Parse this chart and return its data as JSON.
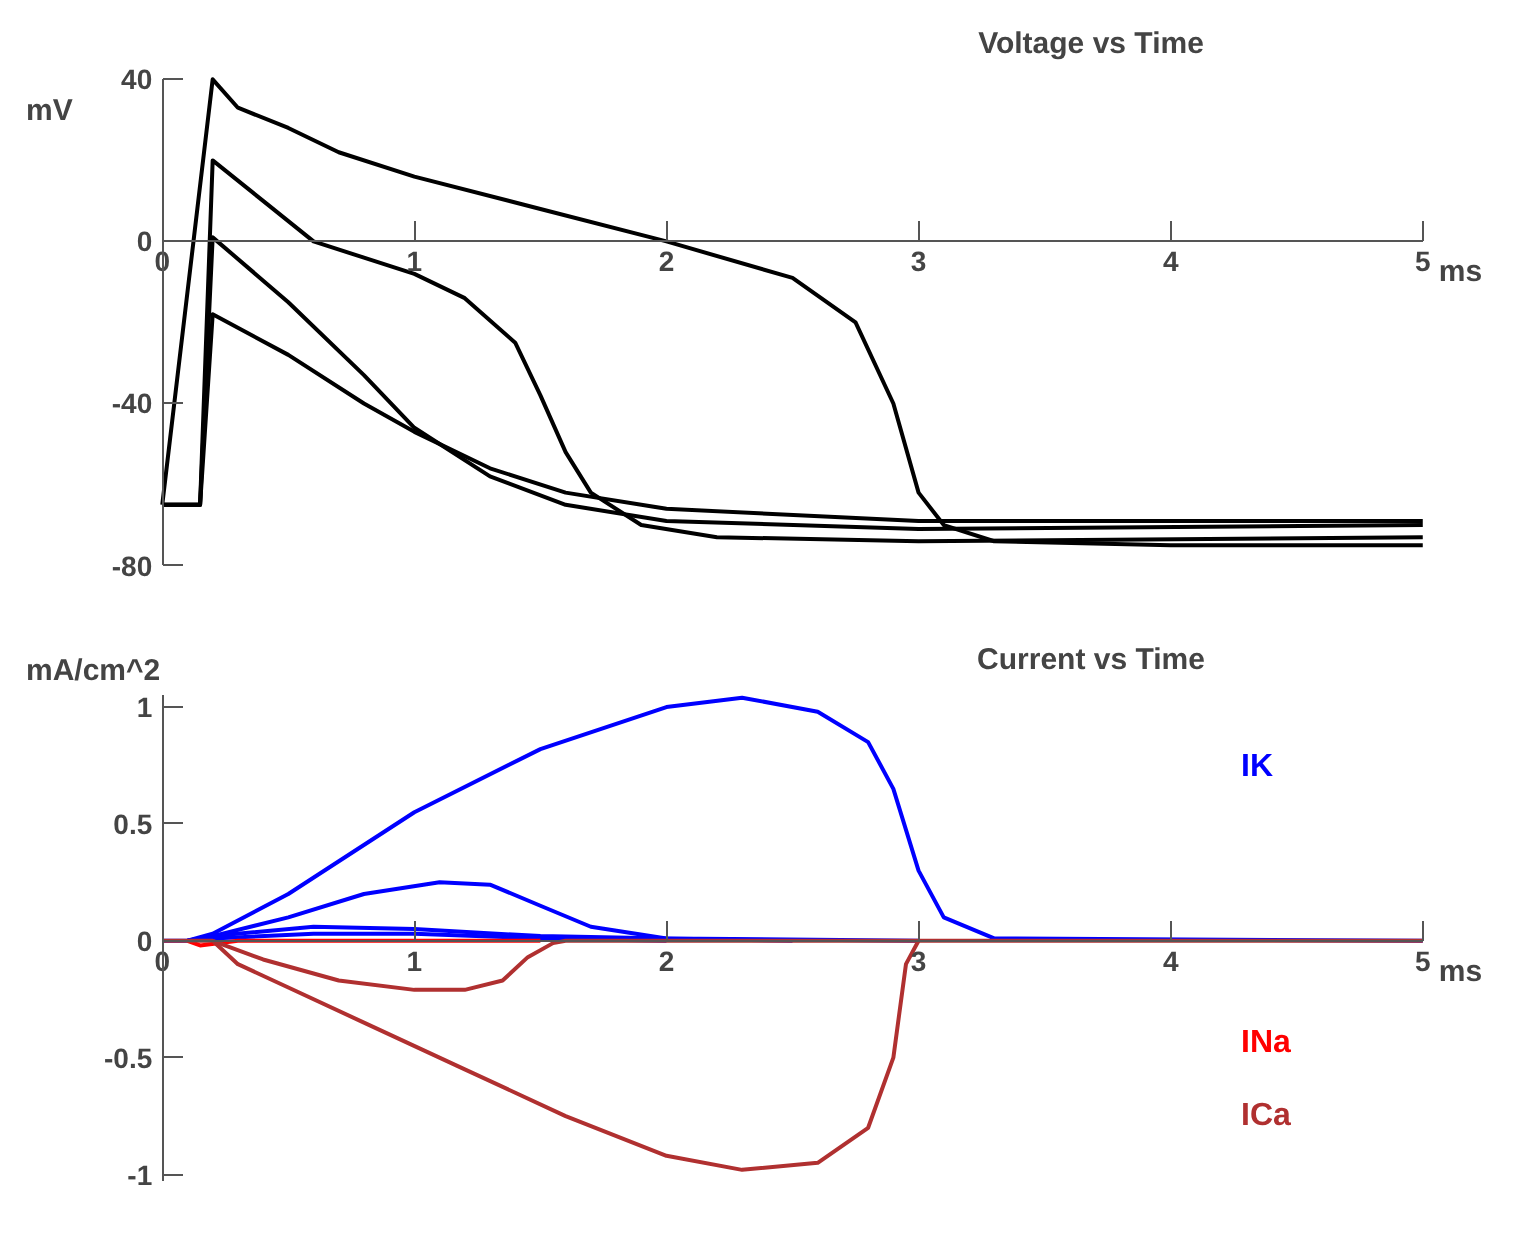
{
  "chart_data": [
    {
      "type": "line",
      "title": "Voltage vs Time",
      "xlabel": "ms",
      "ylabel": "mV",
      "xlim": [
        0,
        5
      ],
      "ylim": [
        -80,
        40
      ],
      "xticks": [
        0,
        1,
        2,
        3,
        4,
        5
      ],
      "yticks": [
        -80,
        -40,
        0,
        40
      ],
      "grid": false,
      "series": [
        {
          "color": "#000000",
          "x": [
            0,
            0.2,
            0.3,
            0.5,
            0.7,
            1,
            1.5,
            2,
            2.5,
            2.75,
            2.9,
            3.0,
            3.1,
            3.3,
            4,
            5
          ],
          "values": [
            -65,
            40,
            33,
            28,
            22,
            16,
            8,
            0,
            -9,
            -20,
            -40,
            -62,
            -70,
            -74,
            -75,
            -75
          ]
        },
        {
          "color": "#000000",
          "x": [
            0,
            0.15,
            0.2,
            0.4,
            0.6,
            0.8,
            1.0,
            1.2,
            1.4,
            1.5,
            1.6,
            1.7,
            1.9,
            2.2,
            3,
            5
          ],
          "values": [
            -65,
            -65,
            20,
            10,
            0,
            -4,
            -8,
            -14,
            -25,
            -38,
            -52,
            -62,
            -70,
            -73,
            -74,
            -73
          ]
        },
        {
          "color": "#000000",
          "x": [
            0,
            0.15,
            0.2,
            0.5,
            0.8,
            1.0,
            1.3,
            1.6,
            2,
            3,
            5
          ],
          "values": [
            -65,
            -65,
            1,
            -15,
            -33,
            -46,
            -58,
            -65,
            -69,
            -71,
            -70
          ]
        },
        {
          "color": "#000000",
          "x": [
            0,
            0.15,
            0.2,
            0.5,
            0.8,
            1.0,
            1.3,
            1.6,
            2,
            3,
            5
          ],
          "values": [
            -65,
            -65,
            -18,
            -28,
            -40,
            -47,
            -56,
            -62,
            -66,
            -69,
            -69
          ]
        }
      ]
    },
    {
      "type": "line",
      "title": "Current vs Time",
      "xlabel": "ms",
      "ylabel": "mA/cm^2",
      "xlim": [
        0,
        5
      ],
      "ylim": [
        -1.03,
        1.05
      ],
      "xticks": [
        0,
        1,
        2,
        3,
        4,
        5
      ],
      "yticks": [
        -1,
        -0.5,
        0,
        0.5,
        1
      ],
      "grid": false,
      "series": [
        {
          "name": "IK",
          "color": "#0000ff",
          "x": [
            0,
            0.1,
            0.2,
            0.5,
            1,
            1.5,
            2,
            2.3,
            2.6,
            2.8,
            2.9,
            3.0,
            3.1,
            3.3,
            5
          ],
          "values": [
            0,
            0,
            0.03,
            0.2,
            0.55,
            0.82,
            1.0,
            1.04,
            0.98,
            0.85,
            0.65,
            0.3,
            0.1,
            0.01,
            0
          ]
        },
        {
          "color": "#0000ff",
          "x": [
            0.1,
            0.2,
            0.5,
            0.8,
            1.1,
            1.3,
            1.5,
            1.7,
            2,
            3
          ],
          "values": [
            0,
            0.02,
            0.1,
            0.2,
            0.25,
            0.24,
            0.15,
            0.06,
            0.01,
            0
          ]
        },
        {
          "color": "#0000ff",
          "x": [
            0.1,
            0.2,
            0.6,
            1,
            1.5,
            2,
            2.5
          ],
          "values": [
            0,
            0.02,
            0.06,
            0.05,
            0.02,
            0.01,
            0
          ]
        },
        {
          "color": "#0000ff",
          "x": [
            0.1,
            0.2,
            0.6,
            1,
            1.5,
            2
          ],
          "values": [
            0,
            0.01,
            0.03,
            0.03,
            0.01,
            0
          ]
        },
        {
          "name": "INa",
          "color": "#ff0000",
          "x": [
            0.1,
            0.15,
            0.3,
            1.5
          ],
          "values": [
            0,
            -0.02,
            0,
            0
          ]
        },
        {
          "name": "ICa",
          "color": "#b03030",
          "x": [
            0.2,
            0.3,
            0.5,
            0.8,
            1.2,
            1.6,
            2,
            2.3,
            2.6,
            2.8,
            2.9,
            2.95,
            3.0
          ],
          "values": [
            0,
            -0.1,
            -0.2,
            -0.35,
            -0.55,
            -0.75,
            -0.92,
            -0.98,
            -0.95,
            -0.8,
            -0.5,
            -0.1,
            0
          ]
        },
        {
          "color": "#b03030",
          "x": [
            0,
            0.2,
            0.4,
            0.7,
            1,
            1.2,
            1.35,
            1.45,
            1.55,
            1.6,
            5
          ],
          "values": [
            0,
            0,
            -0.08,
            -0.17,
            -0.21,
            -0.21,
            -0.17,
            -0.07,
            -0.01,
            0,
            0
          ]
        }
      ]
    }
  ]
}
